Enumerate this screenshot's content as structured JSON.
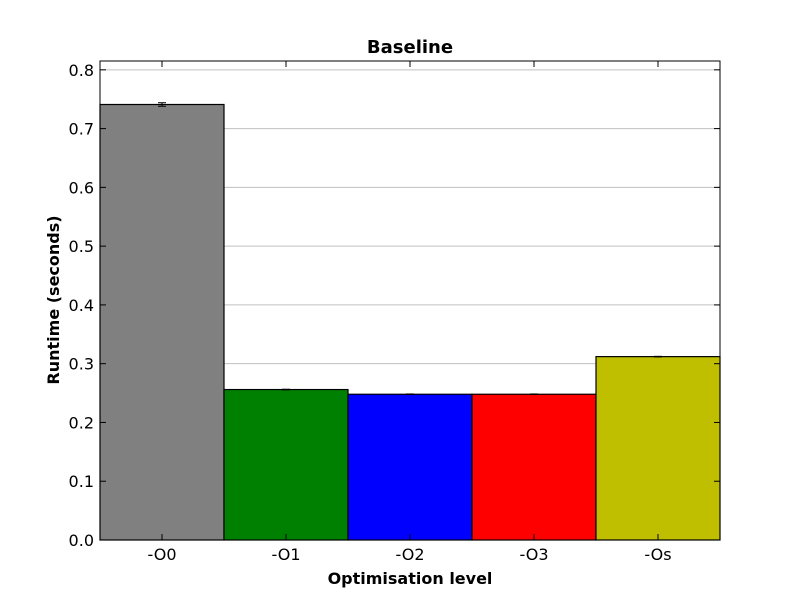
{
  "chart_data": {
    "type": "bar",
    "title": "Baseline",
    "xlabel": "Optimisation level",
    "ylabel": "Runtime (seconds)",
    "categories": [
      "-O0",
      "-O1",
      "-O2",
      "-O3",
      "-Os"
    ],
    "values": [
      0.741,
      0.256,
      0.248,
      0.248,
      0.312
    ],
    "errors": [
      0.003,
      0.0005,
      0.0005,
      0.0005,
      0.0005
    ],
    "colors": [
      "#808080",
      "#008000",
      "#0000ff",
      "#ff0000",
      "#bfbf00"
    ],
    "ylim": [
      0,
      0.815
    ],
    "yticks": [
      "0.0",
      "0.1",
      "0.2",
      "0.3",
      "0.4",
      "0.5",
      "0.6",
      "0.7",
      "0.8"
    ],
    "grid": "horizontal"
  }
}
